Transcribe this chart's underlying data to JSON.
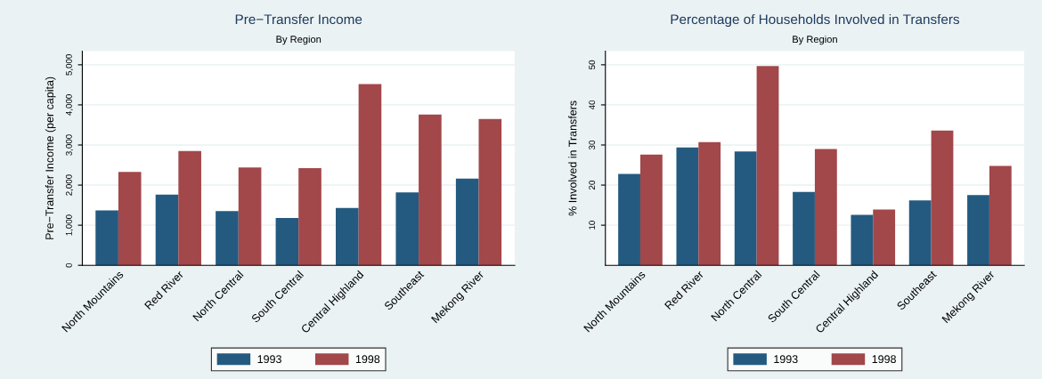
{
  "chart_data": [
    {
      "type": "bar",
      "title": "Pre−Transfer Income",
      "subtitle": "By Region",
      "ylabel": "Pre−Transfer Income (per capita)",
      "categories": [
        "North Mountains",
        "Red River",
        "North Central",
        "South Central",
        "Central Highland",
        "Southeast",
        "Mekong River"
      ],
      "series": [
        {
          "name": "1993",
          "color": "#245a80",
          "values": [
            1370,
            1760,
            1350,
            1180,
            1430,
            1820,
            2160
          ]
        },
        {
          "name": "1998",
          "color": "#a2474a",
          "values": [
            2330,
            2850,
            2440,
            2420,
            4520,
            3760,
            3650
          ]
        }
      ],
      "ylim": [
        0,
        5340
      ],
      "yticks": [
        {
          "value": 0,
          "label": "0"
        },
        {
          "value": 1000,
          "label": "1,000"
        },
        {
          "value": 2000,
          "label": "2,000"
        },
        {
          "value": 3000,
          "label": "3,000"
        },
        {
          "value": 4000,
          "label": "4,000"
        },
        {
          "value": 5000,
          "label": "5,000"
        }
      ],
      "grid": "y",
      "legend": "bottom"
    },
    {
      "type": "bar",
      "title": "Percentage of Households Involved in Transfers",
      "subtitle": "By Region",
      "ylabel": "% Involved in Transfers",
      "categories": [
        "North Mountains",
        "Red River",
        "North Central",
        "South Central",
        "Central Highland",
        "Southeast",
        "Mekong River"
      ],
      "series": [
        {
          "name": "1993",
          "color": "#245a80",
          "values": [
            22.8,
            29.4,
            28.4,
            18.3,
            12.6,
            16.2,
            17.5
          ]
        },
        {
          "name": "1998",
          "color": "#a2474a",
          "values": [
            27.6,
            30.7,
            49.7,
            29.0,
            13.9,
            33.6,
            24.8
          ]
        }
      ],
      "ylim": [
        0,
        53.4
      ],
      "yticks": [
        10,
        20,
        30,
        40,
        50
      ],
      "grid": "y",
      "legend": "bottom"
    }
  ]
}
